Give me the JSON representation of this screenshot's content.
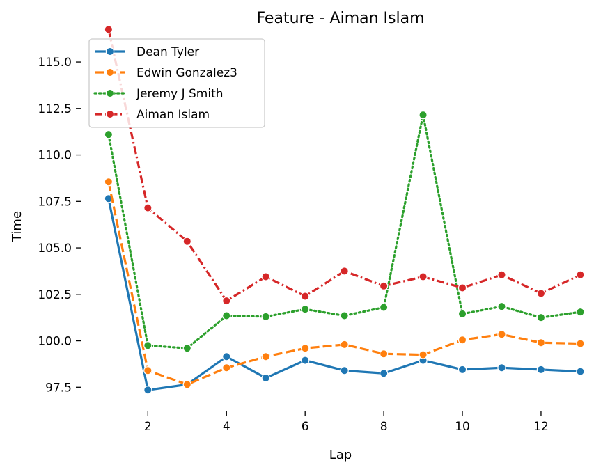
{
  "chart_data": {
    "type": "line",
    "title": "Feature - Aiman Islam",
    "xlabel": "Lap",
    "ylabel": "Time",
    "xlim": [
      0.4,
      13.4
    ],
    "ylim": [
      96.5,
      116.8
    ],
    "xticks": [
      2,
      4,
      6,
      8,
      10,
      12
    ],
    "yticks": [
      97.5,
      100.0,
      102.5,
      105.0,
      107.5,
      110.0,
      112.5,
      115.0
    ],
    "ytick_labels": [
      "97.5",
      "100.0",
      "102.5",
      "105.0",
      "107.5",
      "110.0",
      "112.5",
      "115.0"
    ],
    "grid": false,
    "legend_position": "upper-left",
    "x": [
      1,
      2,
      3,
      4,
      5,
      6,
      7,
      8,
      9,
      10,
      11,
      12,
      13
    ],
    "series": [
      {
        "name": "Dean Tyler",
        "color": "#1f77b4",
        "dash": "solid",
        "values": [
          107.65,
          97.35,
          97.65,
          99.15,
          98.0,
          98.95,
          98.4,
          98.25,
          98.95,
          98.45,
          98.55,
          98.45,
          98.35
        ]
      },
      {
        "name": "Edwin Gonzalez3",
        "color": "#ff7f0e",
        "dash": "dashed",
        "values": [
          108.55,
          98.4,
          97.65,
          98.55,
          99.15,
          99.6,
          99.8,
          99.3,
          99.25,
          100.05,
          100.35,
          99.9,
          99.85
        ]
      },
      {
        "name": "Jeremy J Smith",
        "color": "#2ca02c",
        "dash": "dotted",
        "values": [
          111.1,
          99.75,
          99.6,
          101.35,
          101.3,
          101.7,
          101.35,
          101.8,
          112.15,
          101.45,
          101.85,
          101.25,
          101.55
        ]
      },
      {
        "name": "Aiman Islam",
        "color": "#d62728",
        "dash": "dashdot",
        "values": [
          116.75,
          107.15,
          105.35,
          102.15,
          103.45,
          102.4,
          103.75,
          102.95,
          103.45,
          102.85,
          103.55,
          102.55,
          103.55
        ]
      }
    ]
  }
}
